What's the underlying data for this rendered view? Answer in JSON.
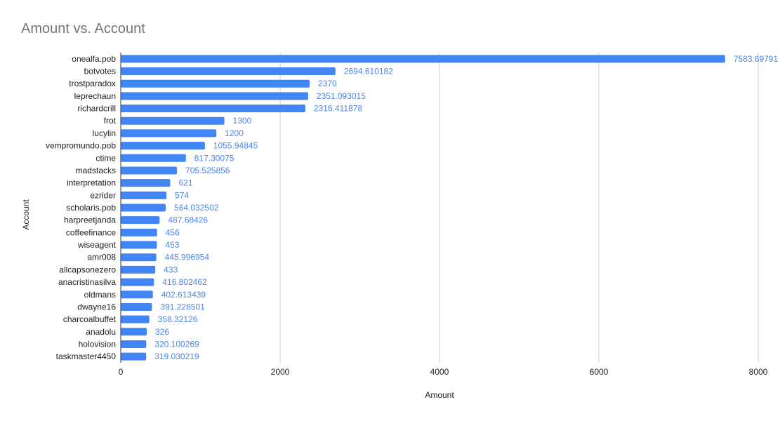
{
  "chart_data": {
    "type": "bar",
    "orientation": "horizontal",
    "title": "Amount vs. Account",
    "xlabel": "Amount",
    "ylabel": "Account",
    "xlim": [
      0,
      8000
    ],
    "x_ticks": [
      "0",
      "2000",
      "4000",
      "6000",
      "8000"
    ],
    "grid": true,
    "legend": "none",
    "bar_color": "#4285f4",
    "label_color": "#4a86e8",
    "categories": [
      "onealfa.pob",
      "botvotes",
      "trostparadox",
      "leprechaun",
      "richardcrill",
      "frot",
      "lucylin",
      "vempromundo.pob",
      "ctime",
      "madstacks",
      "interpretation",
      "ezrider",
      "scholaris.pob",
      "harpreetjanda",
      "coffeefinance",
      "wiseagent",
      "amr008",
      "allcapsonezero",
      "anacristinasilva",
      "oldmans",
      "dwayne16",
      "charcoalbuffet",
      "anadolu",
      "holovision",
      "taskmaster4450"
    ],
    "values": [
      7583.69791,
      2694.610182,
      2370,
      2351.093015,
      2316.411878,
      1300,
      1200,
      1055.94845,
      817.30075,
      705.525856,
      621,
      574,
      564.032502,
      487.68426,
      456,
      453,
      445.996954,
      433,
      416.802462,
      402.613439,
      391.228501,
      358.32126,
      326,
      320.100269,
      319.030219
    ],
    "value_labels": [
      "7583.69791",
      "2694.610182",
      "2370",
      "2351.093015",
      "2316.411878",
      "1300",
      "1200",
      "1055.94845",
      "817.30075",
      "705.525856",
      "621",
      "574",
      "564.032502",
      "487.68426",
      "456",
      "453",
      "445.996954",
      "433",
      "416.802462",
      "402.613439",
      "391.228501",
      "358.32126",
      "326",
      "320.100269",
      "319.030219"
    ]
  }
}
